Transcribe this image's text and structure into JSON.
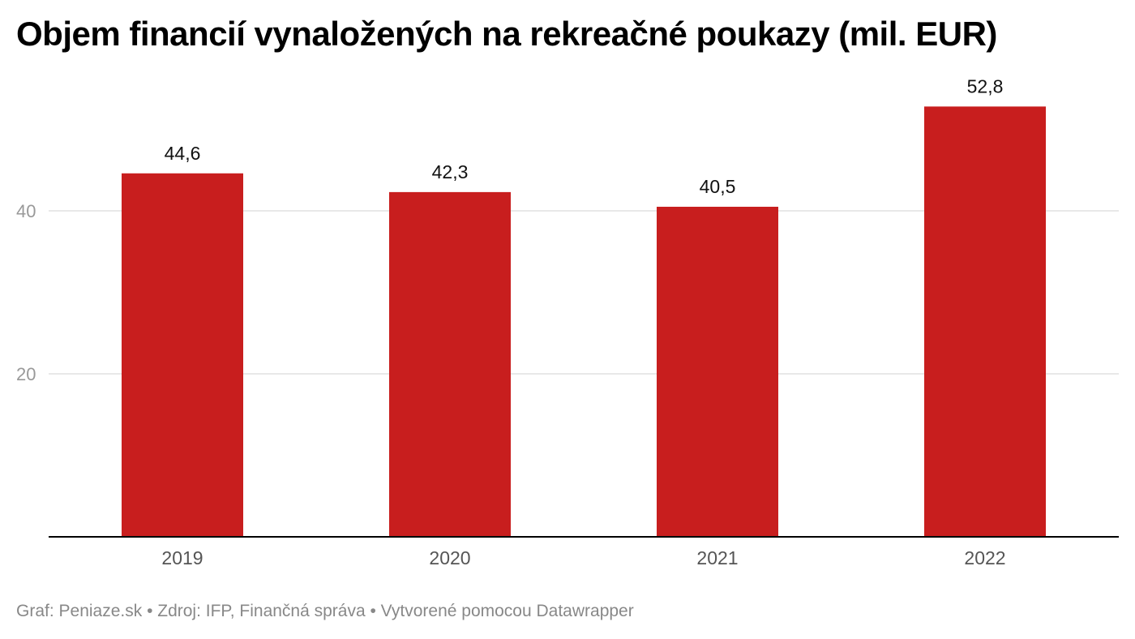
{
  "chart_data": {
    "type": "bar",
    "title": "Objem financií vynaložených na rekreačné poukazy (mil. EUR)",
    "categories": [
      "2019",
      "2020",
      "2021",
      "2022"
    ],
    "values": [
      44.6,
      42.3,
      40.5,
      52.8
    ],
    "value_labels": [
      "44,6",
      "42,3",
      "40,5",
      "52,8"
    ],
    "ylim": [
      0,
      60
    ],
    "y_ticks": [
      20,
      40
    ],
    "y_tick_labels": [
      "20",
      "40"
    ],
    "grid": true,
    "xlabel": "",
    "ylabel": ""
  },
  "footer": {
    "text": "Graf: Peniaze.sk • Zdroj: IFP, Finančná správa • Vytvorené pomocou Datawrapper"
  },
  "colors": {
    "bar": "#c81e1e",
    "grid": "#e0e0e0",
    "axis": "#000000",
    "tick_label": "#999999",
    "x_label": "#555555",
    "value_label": "#111111"
  }
}
